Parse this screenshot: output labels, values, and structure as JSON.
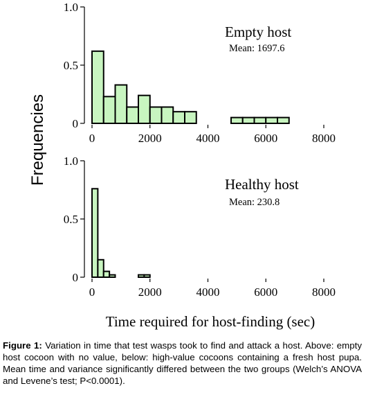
{
  "chart_data": [
    {
      "type": "bar",
      "panel": "top",
      "title": "Empty host",
      "mean_text": "Mean: 1697.6",
      "xlim": [
        0,
        8000
      ],
      "ylim": [
        0,
        1.0
      ],
      "bin_width": 400,
      "x_ticks": [
        "0",
        "2000",
        "4000",
        "6000",
        "8000"
      ],
      "y_ticks": [
        "0",
        "0.5",
        "1.0"
      ],
      "bins": [
        {
          "start": 0,
          "value": 0.62
        },
        {
          "start": 400,
          "value": 0.23
        },
        {
          "start": 800,
          "value": 0.33
        },
        {
          "start": 1200,
          "value": 0.14
        },
        {
          "start": 1600,
          "value": 0.24
        },
        {
          "start": 2000,
          "value": 0.14
        },
        {
          "start": 2400,
          "value": 0.14
        },
        {
          "start": 2800,
          "value": 0.1
        },
        {
          "start": 3200,
          "value": 0.1
        },
        {
          "start": 4800,
          "value": 0.05
        },
        {
          "start": 5200,
          "value": 0.05
        },
        {
          "start": 5600,
          "value": 0.05
        },
        {
          "start": 6000,
          "value": 0.05
        },
        {
          "start": 6400,
          "value": 0.05
        }
      ]
    },
    {
      "type": "bar",
      "panel": "bottom",
      "title": "Healthy host",
      "mean_text": "Mean: 230.8",
      "xlim": [
        0,
        8000
      ],
      "ylim": [
        0,
        1.0
      ],
      "bin_width": 200,
      "x_ticks": [
        "0",
        "2000",
        "4000",
        "6000",
        "8000"
      ],
      "y_ticks": [
        "0",
        "0.5",
        "1.0"
      ],
      "bins": [
        {
          "start": 0,
          "value": 0.76
        },
        {
          "start": 200,
          "value": 0.15
        },
        {
          "start": 400,
          "value": 0.05
        },
        {
          "start": 600,
          "value": 0.02
        },
        {
          "start": 1600,
          "value": 0.02
        },
        {
          "start": 1800,
          "value": 0.02
        }
      ]
    }
  ],
  "axes": {
    "ylabel": "Frequencies",
    "xlabel": "Time required for host-finding (sec)"
  },
  "colors": {
    "bar_fill": "#c8f5c0",
    "bar_stroke": "#000000"
  },
  "caption": {
    "label": "Figure 1:",
    "text": " Variation in time that test wasps took to find and attack a host. Above: empty host cocoon with no value, below: high-value cocoons containing a fresh host pupa. Mean time and variance significantly differed between the two groups (Welch’s ANOVA and Levene’s test; P<0.0001)."
  }
}
